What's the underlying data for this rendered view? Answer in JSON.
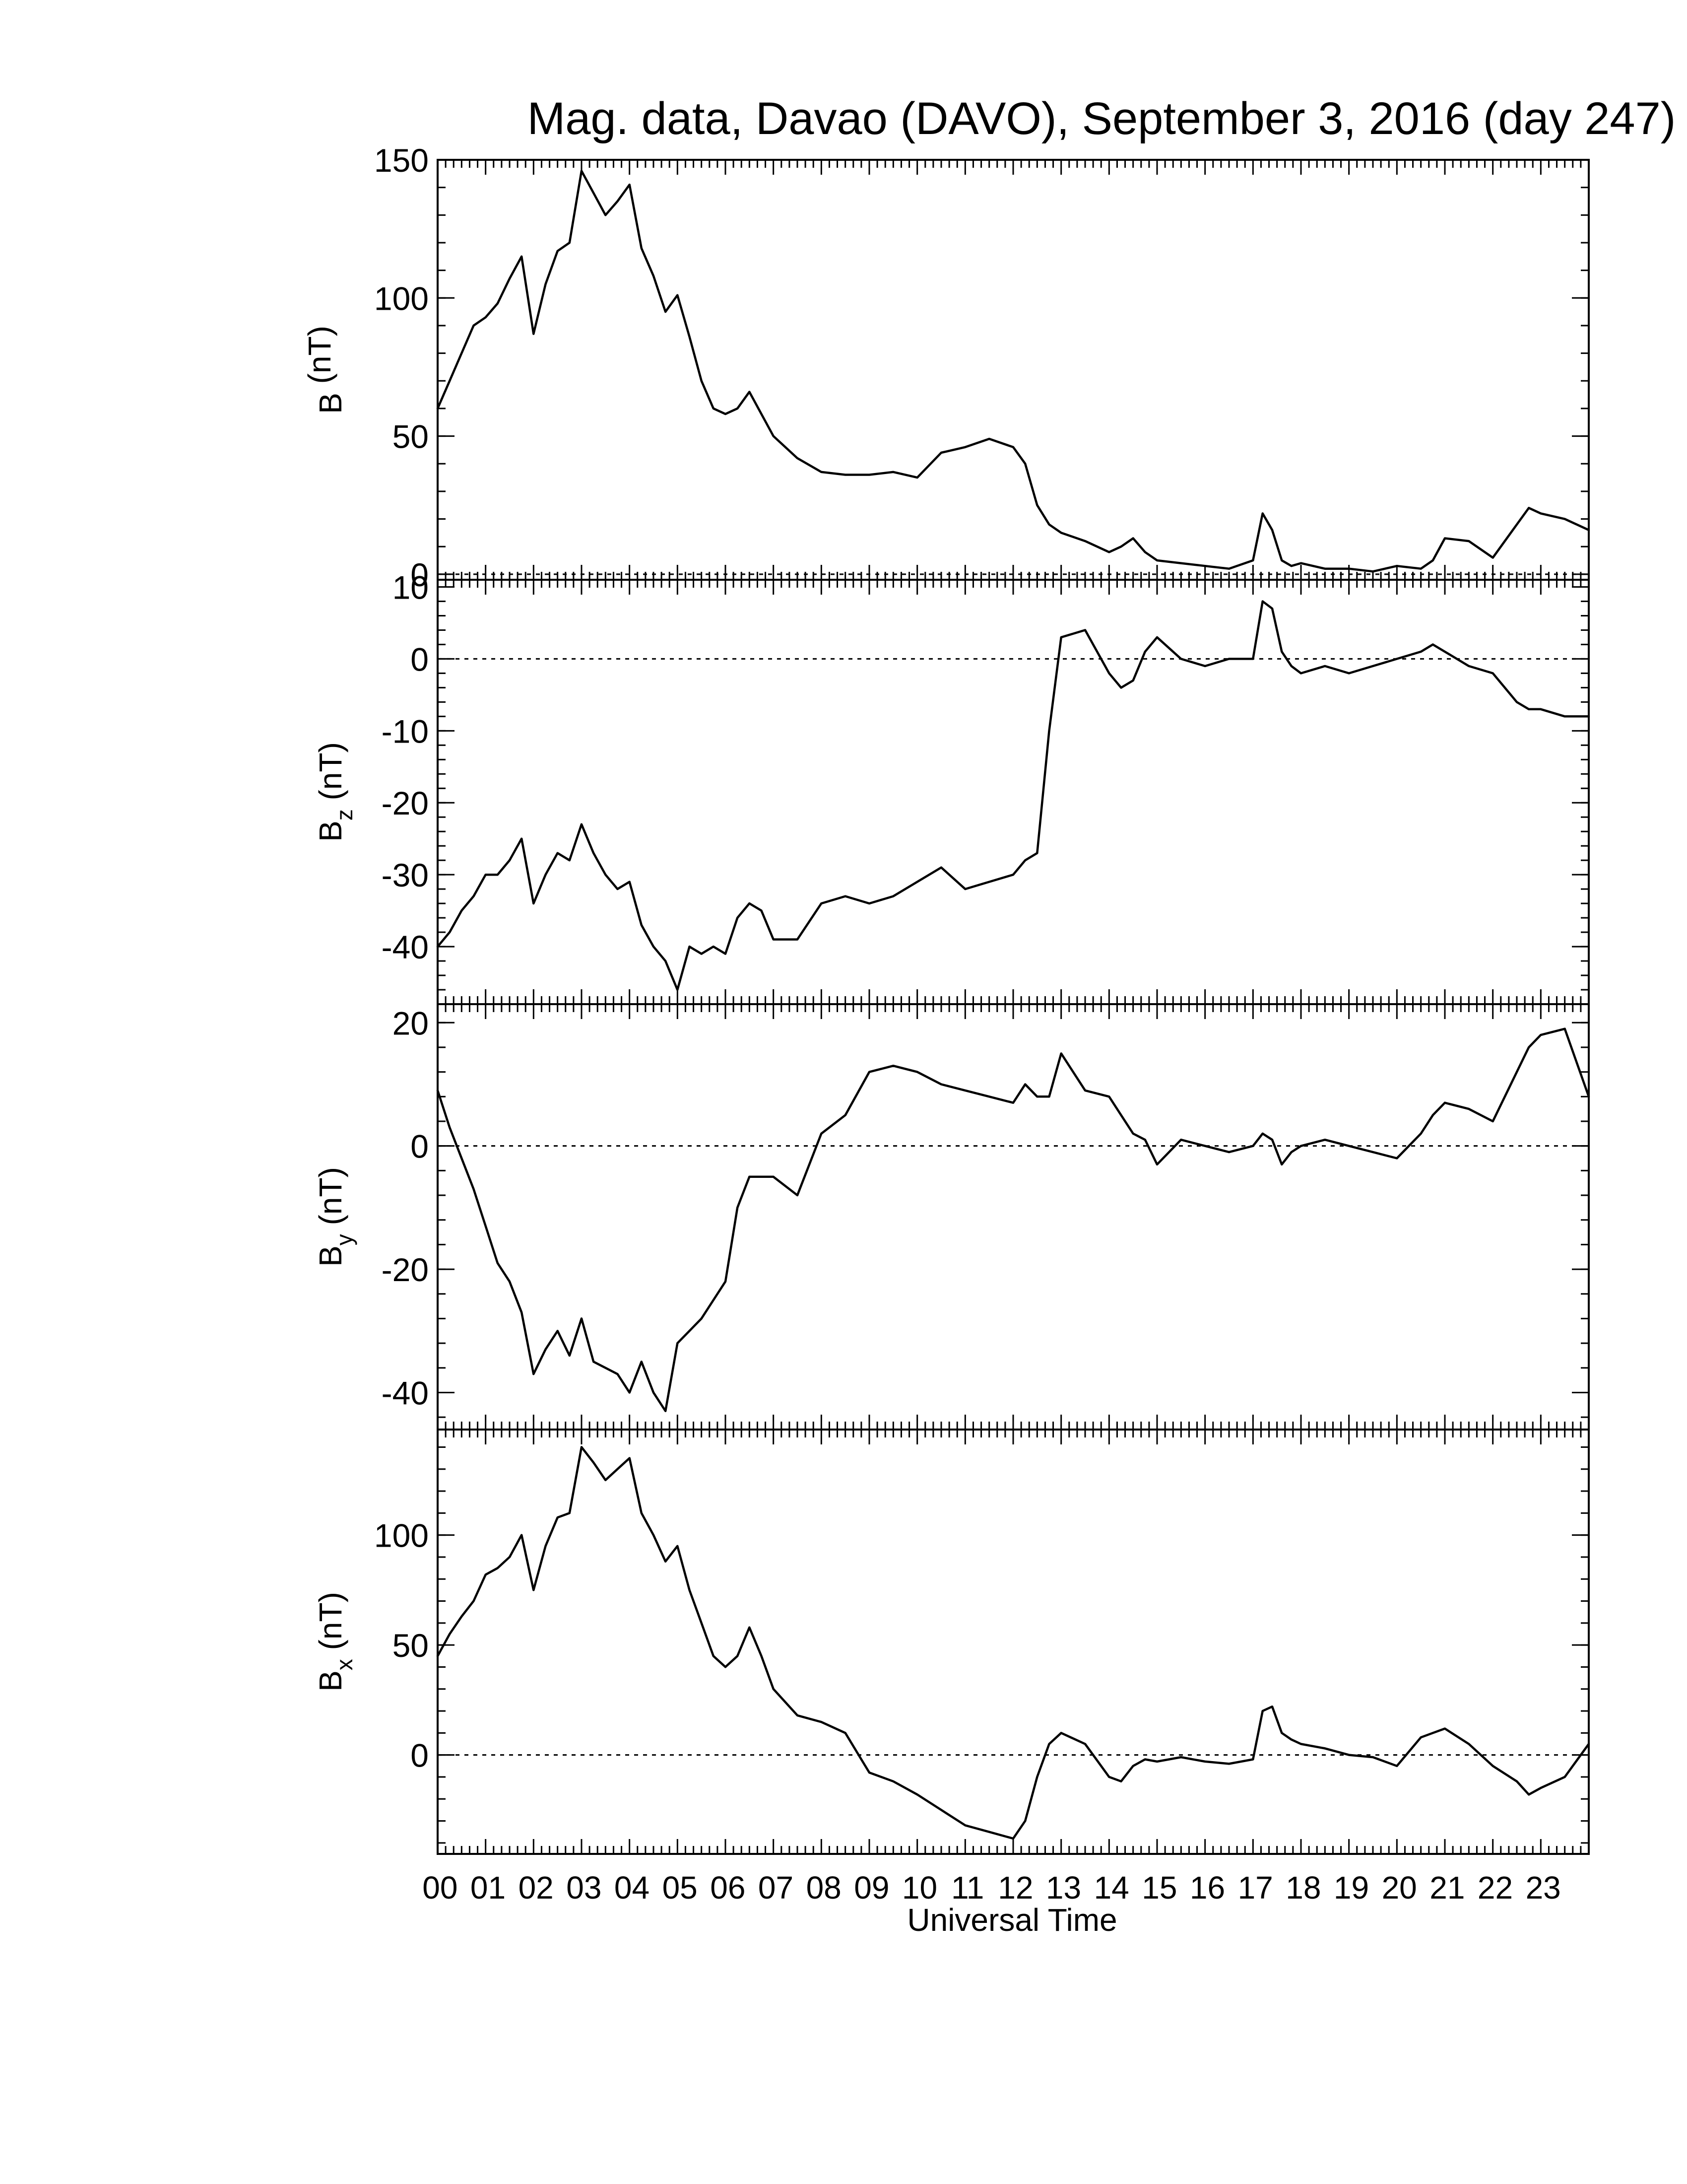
{
  "chart_data": [
    {
      "type": "line",
      "title": "Mag. data, Davao (DAVO), September 3, 2016 (day 247)",
      "ylabel": "B (nT)",
      "ylabel_main": "B",
      "ylabel_sub": "",
      "ylabel_unit": " (nT)",
      "ylim": [
        -2,
        150
      ],
      "yticks": [
        0,
        50,
        100,
        150
      ],
      "xlim": [
        0,
        24
      ],
      "x_hours": [
        0,
        0.25,
        0.5,
        0.75,
        1,
        1.25,
        1.5,
        1.75,
        2,
        2.25,
        2.5,
        2.75,
        3,
        3.25,
        3.5,
        3.75,
        4,
        4.25,
        4.5,
        4.75,
        5,
        5.25,
        5.5,
        5.75,
        6,
        6.25,
        6.5,
        6.75,
        7,
        7.5,
        8,
        8.5,
        9,
        9.5,
        10,
        10.5,
        11,
        11.5,
        12,
        12.25,
        12.5,
        12.75,
        13,
        13.5,
        14,
        14.25,
        14.5,
        14.75,
        15,
        15.5,
        16,
        16.5,
        17,
        17.2,
        17.4,
        17.6,
        17.8,
        18,
        18.5,
        19,
        19.5,
        20,
        20.5,
        20.75,
        21,
        21.5,
        22,
        22.5,
        22.75,
        23,
        23.5,
        24
      ],
      "y_values": [
        60,
        70,
        80,
        90,
        93,
        98,
        107,
        115,
        87,
        105,
        117,
        120,
        146,
        138,
        130,
        135,
        141,
        118,
        108,
        95,
        101,
        86,
        70,
        60,
        58,
        60,
        66,
        58,
        50,
        42,
        37,
        36,
        36,
        37,
        35,
        44,
        46,
        49,
        46,
        40,
        25,
        18,
        15,
        12,
        8,
        10,
        13,
        8,
        5,
        4,
        3,
        2,
        5,
        22,
        16,
        5,
        3,
        4,
        2,
        2,
        1,
        3,
        2,
        5,
        13,
        12,
        6,
        18,
        24,
        22,
        20,
        16
      ],
      "zero_line": 0
    },
    {
      "type": "line",
      "title": "",
      "ylabel": "Bz (nT)",
      "ylabel_main": "B",
      "ylabel_sub": "z",
      "ylabel_unit": " (nT)",
      "ylim": [
        -48,
        11
      ],
      "yticks": [
        -40,
        -30,
        -20,
        -10,
        0,
        10
      ],
      "xlim": [
        0,
        24
      ],
      "x_hours": [
        0,
        0.25,
        0.5,
        0.75,
        1,
        1.25,
        1.5,
        1.75,
        2,
        2.25,
        2.5,
        2.75,
        3,
        3.25,
        3.5,
        3.75,
        4,
        4.25,
        4.5,
        4.75,
        5,
        5.25,
        5.5,
        5.75,
        6,
        6.25,
        6.5,
        6.75,
        7,
        7.5,
        8,
        8.5,
        9,
        9.5,
        10,
        10.5,
        11,
        11.5,
        12,
        12.25,
        12.5,
        12.75,
        13,
        13.5,
        14,
        14.25,
        14.5,
        14.75,
        15,
        15.5,
        16,
        16.5,
        17,
        17.2,
        17.4,
        17.6,
        17.8,
        18,
        18.5,
        19,
        19.5,
        20,
        20.5,
        20.75,
        21,
        21.5,
        22,
        22.5,
        22.75,
        23,
        23.5,
        24
      ],
      "y_values": [
        -40,
        -38,
        -35,
        -33,
        -30,
        -30,
        -28,
        -25,
        -34,
        -30,
        -27,
        -28,
        -23,
        -27,
        -30,
        -32,
        -31,
        -37,
        -40,
        -42,
        -46,
        -40,
        -41,
        -40,
        -41,
        -36,
        -34,
        -35,
        -39,
        -39,
        -34,
        -33,
        -34,
        -33,
        -31,
        -29,
        -32,
        -31,
        -30,
        -28,
        -27,
        -10,
        3,
        4,
        -2,
        -4,
        -3,
        1,
        3,
        0,
        -1,
        0,
        0,
        8,
        7,
        1,
        -1,
        -2,
        -1,
        -2,
        -1,
        0,
        1,
        2,
        1,
        -1,
        -2,
        -6,
        -7,
        -7,
        -8,
        -8
      ],
      "zero_line": 0
    },
    {
      "type": "line",
      "title": "",
      "ylabel": "By (nT)",
      "ylabel_main": "B",
      "ylabel_sub": "y",
      "ylabel_unit": " (nT)",
      "ylim": [
        -46,
        23
      ],
      "yticks": [
        -40,
        -20,
        0,
        20
      ],
      "xlim": [
        0,
        24
      ],
      "x_hours": [
        0,
        0.25,
        0.5,
        0.75,
        1,
        1.25,
        1.5,
        1.75,
        2,
        2.25,
        2.5,
        2.75,
        3,
        3.25,
        3.5,
        3.75,
        4,
        4.25,
        4.5,
        4.75,
        5,
        5.25,
        5.5,
        5.75,
        6,
        6.25,
        6.5,
        6.75,
        7,
        7.5,
        8,
        8.5,
        9,
        9.5,
        10,
        10.5,
        11,
        11.5,
        12,
        12.25,
        12.5,
        12.75,
        13,
        13.5,
        14,
        14.25,
        14.5,
        14.75,
        15,
        15.5,
        16,
        16.5,
        17,
        17.2,
        17.4,
        17.6,
        17.8,
        18,
        18.5,
        19,
        19.5,
        20,
        20.5,
        20.75,
        21,
        21.5,
        22,
        22.5,
        22.75,
        23,
        23.5,
        24
      ],
      "y_values": [
        9,
        3,
        -2,
        -7,
        -13,
        -19,
        -22,
        -27,
        -37,
        -33,
        -30,
        -34,
        -28,
        -35,
        -36,
        -37,
        -40,
        -35,
        -40,
        -43,
        -32,
        -30,
        -28,
        -25,
        -22,
        -10,
        -5,
        -5,
        -5,
        -8,
        2,
        5,
        12,
        13,
        12,
        10,
        9,
        8,
        7,
        10,
        8,
        8,
        15,
        9,
        8,
        5,
        2,
        1,
        -3,
        1,
        0,
        -1,
        0,
        2,
        1,
        -3,
        -1,
        0,
        1,
        0,
        -1,
        -2,
        2,
        5,
        7,
        6,
        4,
        12,
        16,
        18,
        19,
        8
      ],
      "zero_line": 0
    },
    {
      "type": "line",
      "title": "",
      "ylabel": "Bx (nT)",
      "ylabel_main": "B",
      "ylabel_sub": "x",
      "ylabel_unit": " (nT)",
      "ylim": [
        -45,
        148
      ],
      "yticks": [
        0,
        50,
        100
      ],
      "xlim": [
        0,
        24
      ],
      "xticks": [
        "00",
        "01",
        "02",
        "03",
        "04",
        "05",
        "06",
        "07",
        "08",
        "09",
        "10",
        "11",
        "12",
        "13",
        "14",
        "15",
        "16",
        "17",
        "18",
        "19",
        "20",
        "21",
        "22",
        "23"
      ],
      "xlabel": "Universal Time",
      "x_hours": [
        0,
        0.25,
        0.5,
        0.75,
        1,
        1.25,
        1.5,
        1.75,
        2,
        2.25,
        2.5,
        2.75,
        3,
        3.25,
        3.5,
        3.75,
        4,
        4.25,
        4.5,
        4.75,
        5,
        5.25,
        5.5,
        5.75,
        6,
        6.25,
        6.5,
        6.75,
        7,
        7.5,
        8,
        8.5,
        9,
        9.5,
        10,
        10.5,
        11,
        11.5,
        12,
        12.25,
        12.5,
        12.75,
        13,
        13.5,
        14,
        14.25,
        14.5,
        14.75,
        15,
        15.5,
        16,
        16.5,
        17,
        17.2,
        17.4,
        17.6,
        17.8,
        18,
        18.5,
        19,
        19.5,
        20,
        20.5,
        20.75,
        21,
        21.5,
        22,
        22.5,
        22.75,
        23,
        23.5,
        24
      ],
      "y_values": [
        45,
        55,
        63,
        70,
        82,
        85,
        90,
        100,
        75,
        95,
        108,
        110,
        140,
        133,
        125,
        130,
        135,
        110,
        100,
        88,
        95,
        75,
        60,
        45,
        40,
        45,
        58,
        45,
        30,
        18,
        15,
        10,
        -8,
        -12,
        -18,
        -25,
        -32,
        -35,
        -38,
        -30,
        -10,
        5,
        10,
        5,
        -10,
        -12,
        -5,
        -2,
        -3,
        -1,
        -3,
        -4,
        -2,
        20,
        22,
        10,
        7,
        5,
        3,
        0,
        -1,
        -5,
        8,
        10,
        12,
        5,
        -5,
        -12,
        -18,
        -15,
        -10,
        5
      ],
      "zero_line": 0
    }
  ]
}
